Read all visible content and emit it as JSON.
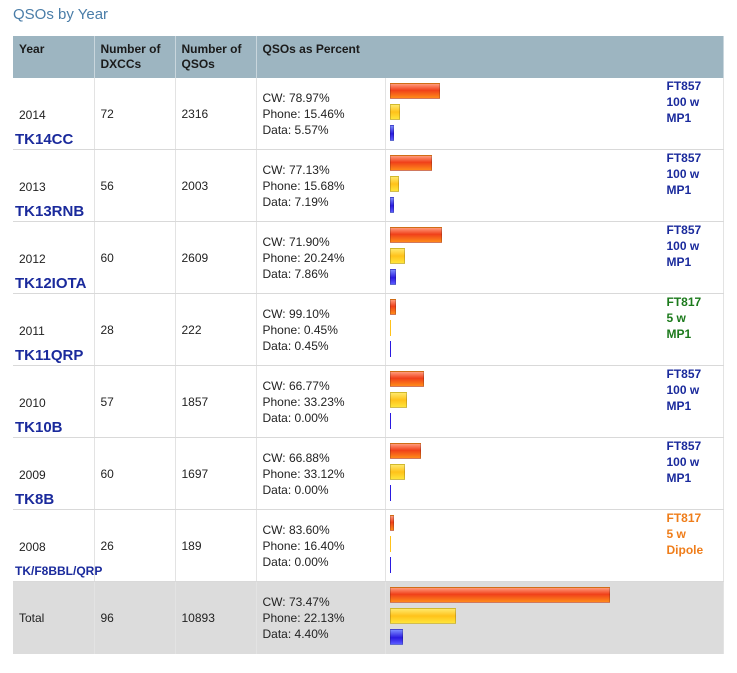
{
  "page_title": "QSOs by Year",
  "colors": {
    "header_bg": "#9db5c1",
    "callsign": "#1a2a9c",
    "rig_blue": "#1a2a9c",
    "rig_green": "#1c7a1c",
    "rig_orange": "#ef7d1a",
    "total_bg": "#dcdcdc"
  },
  "table": {
    "headers": {
      "year": "Year",
      "dxccs_1": "Number of",
      "dxccs_2": "DXCCs",
      "qsos_1": "Number of",
      "qsos_2": "QSOs",
      "percent": "QSOs as Percent"
    },
    "rows": [
      {
        "year": "2014",
        "callsign": "TK14CC",
        "dxccs": "72",
        "qsos": "2316",
        "cw": "CW: 78.97%",
        "phone": "Phone: 15.46%",
        "data": "Data: 5.57%",
        "rig1": "FT857",
        "rig2": "100 w",
        "rig3": "MP1",
        "rig_color": "rig_blue"
      },
      {
        "year": "2013",
        "callsign": "TK13RNB",
        "dxccs": "56",
        "qsos": "2003",
        "cw": "CW: 77.13%",
        "phone": "Phone: 15.68%",
        "data": "Data: 7.19%",
        "rig1": "FT857",
        "rig2": "100 w",
        "rig3": "MP1",
        "rig_color": "rig_blue"
      },
      {
        "year": "2012",
        "callsign": "TK12IOTA",
        "dxccs": "60",
        "qsos": "2609",
        "cw": "CW: 71.90%",
        "phone": "Phone: 20.24%",
        "data": "Data: 7.86%",
        "rig1": "FT857",
        "rig2": "100 w",
        "rig3": "MP1",
        "rig_color": "rig_blue"
      },
      {
        "year": "2011",
        "callsign": "TK11QRP",
        "dxccs": "28",
        "qsos": "222",
        "cw": "CW: 99.10%",
        "phone": "Phone: 0.45%",
        "data": "Data: 0.45%",
        "rig1": "FT817",
        "rig2": "5 w",
        "rig3": "MP1",
        "rig_color": "rig_green"
      },
      {
        "year": "2010",
        "callsign": "TK10B",
        "dxccs": "57",
        "qsos": "1857",
        "cw": "CW: 66.77%",
        "phone": "Phone: 33.23%",
        "data": "Data: 0.00%",
        "rig1": "FT857",
        "rig2": "100 w",
        "rig3": "MP1",
        "rig_color": "rig_blue"
      },
      {
        "year": "2009",
        "callsign": "TK8B",
        "dxccs": "60",
        "qsos": "1697",
        "cw": "CW: 66.88%",
        "phone": "Phone: 33.12%",
        "data": "Data: 0.00%",
        "rig1": "FT857",
        "rig2": "100 w",
        "rig3": "MP1",
        "rig_color": "rig_blue"
      },
      {
        "year": "2008",
        "callsign": "TK/F8BBL/QRP",
        "dxccs": "26",
        "qsos": "189",
        "cw": "CW: 83.60%",
        "phone": "Phone: 16.40%",
        "data": "Data: 0.00%",
        "rig1": "FT817",
        "rig2": "5 w",
        "rig3": "Dipole",
        "rig_color": "rig_orange"
      }
    ],
    "total": {
      "label": "Total",
      "dxccs": "96",
      "qsos": "10893",
      "cw": "CW: 73.47%",
      "phone": "Phone: 22.13%",
      "data": "Data: 4.40%"
    }
  },
  "chart_data": {
    "type": "bar",
    "orientation": "horizontal",
    "categories": [
      "2014",
      "2013",
      "2012",
      "2011",
      "2010",
      "2009",
      "2008",
      "Total"
    ],
    "series": [
      {
        "name": "CW",
        "values": [
          1829,
          1545,
          1876,
          220,
          1240,
          1135,
          158,
          8003
        ]
      },
      {
        "name": "Phone",
        "values": [
          358,
          314,
          528,
          1,
          617,
          562,
          31,
          2411
        ]
      },
      {
        "name": "Data",
        "values": [
          129,
          144,
          205,
          1,
          0,
          0,
          0,
          479
        ]
      }
    ]
  }
}
